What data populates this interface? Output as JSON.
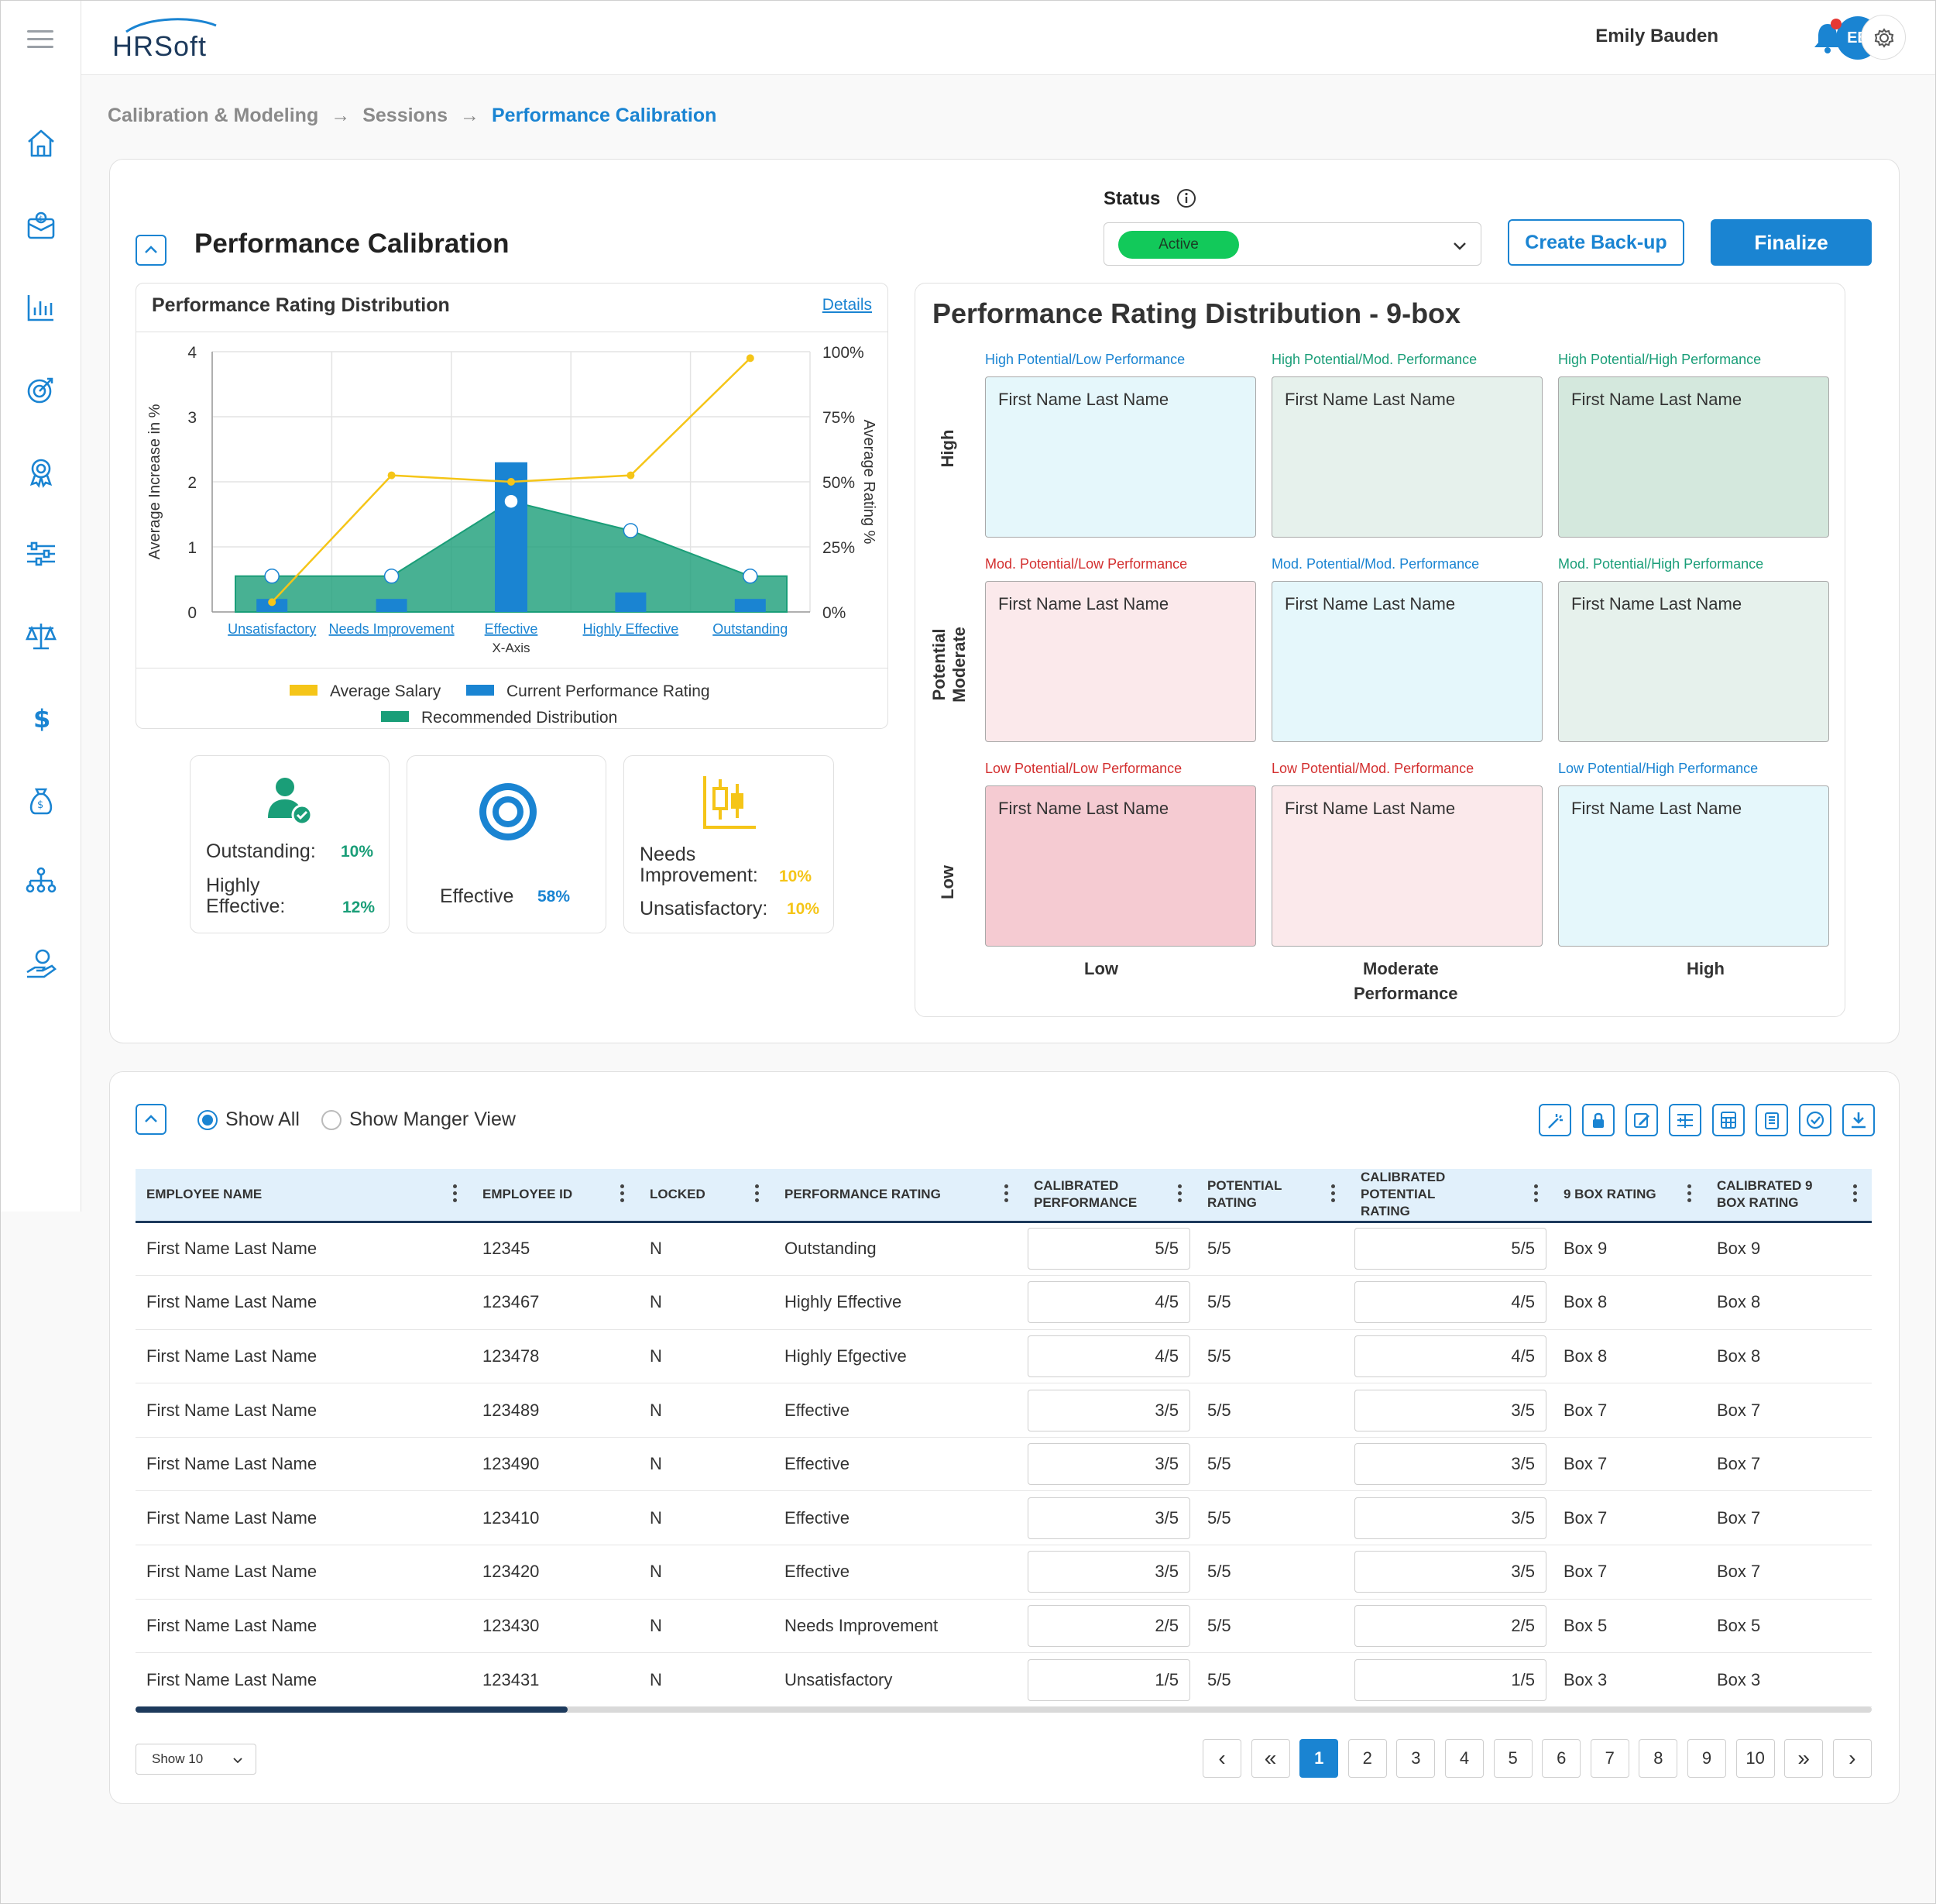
{
  "header": {
    "logo": "HRSoft",
    "user_name": "Emily Bauden",
    "user_initials": "EB"
  },
  "sidebar": {
    "items": [
      {
        "icon": "home-icon"
      },
      {
        "icon": "compensation-box-icon"
      },
      {
        "icon": "bar-chart-icon"
      },
      {
        "icon": "target-icon"
      },
      {
        "icon": "award-icon"
      },
      {
        "icon": "sliders-icon"
      },
      {
        "icon": "scales-icon"
      },
      {
        "icon": "dollar-icon"
      },
      {
        "icon": "money-bag-icon"
      },
      {
        "icon": "org-chart-icon"
      },
      {
        "icon": "hand-coin-icon"
      }
    ]
  },
  "breadcrumb": {
    "items": [
      "Calibration & Modeling",
      "Sessions"
    ],
    "current": "Performance Calibration"
  },
  "calibration": {
    "title": "Performance Calibration",
    "status_label": "Status",
    "status_value": "Active",
    "backup_label": "Create Back-up",
    "finalize_label": "Finalize"
  },
  "chart_card": {
    "title": "Performance Rating Distribution",
    "details_label": "Details"
  },
  "chart_data": {
    "type": "bar",
    "categories": [
      "Unsatisfactory",
      "Needs Improvement",
      "Effective",
      "Highly Effective",
      "Outstanding"
    ],
    "xlabel": "X-Axis",
    "ylabel": "Average Increase in %",
    "y2label": "Average Rating %",
    "ylim": [
      0,
      4
    ],
    "y2lim": [
      0,
      100
    ],
    "yticks": [
      "0",
      "1",
      "2",
      "3",
      "4"
    ],
    "y2ticks": [
      "0%",
      "25%",
      "50%",
      "75%",
      "100%"
    ],
    "series": [
      {
        "name": "Average Salary",
        "kind": "line",
        "axis": "left",
        "color": "#f5c518",
        "values": [
          0.15,
          2.1,
          2.0,
          2.1,
          3.9
        ]
      },
      {
        "name": "Current Performance Rating",
        "kind": "bar",
        "axis": "left",
        "color": "#1a84d2",
        "values": [
          0.2,
          0.2,
          2.3,
          0.3,
          0.2
        ]
      },
      {
        "name": "Recommended Distribution",
        "kind": "area",
        "axis": "left",
        "color": "#1a9e78",
        "values": [
          0.55,
          0.55,
          1.7,
          1.25,
          0.55
        ]
      }
    ],
    "legend": [
      {
        "label": "Average Salary",
        "color": "#f5c518"
      },
      {
        "label": "Current Performance Rating",
        "color": "#1a84d2"
      },
      {
        "label": "Recommended Distribution",
        "color": "#1a9e78"
      }
    ]
  },
  "stats": {
    "outstanding_label": "Outstanding:",
    "outstanding_pct": "10%",
    "highly_effective_label": "Highly Effective:",
    "highly_effective_pct": "12%",
    "effective_label": "Effective",
    "effective_pct": "58%",
    "needs_improvement_label": "Needs Improvement:",
    "needs_improvement_pct": "10%",
    "unsatisfactory_label": "Unsatisfactory:",
    "unsatisfactory_pct": "10%",
    "colors": {
      "green": "#1a9e78",
      "blue": "#1a84d2",
      "yellow": "#f5c518"
    }
  },
  "ninebox": {
    "title": "Performance Rating Distribution - 9-box",
    "y_axis_label": "Potential",
    "x_axis_label": "Performance",
    "y_levels": [
      "High",
      "Moderate",
      "Low"
    ],
    "x_levels": [
      "Low",
      "Moderate",
      "High"
    ],
    "cells": [
      {
        "label": "High Potential/Low Performance",
        "name": "First Name Last Name",
        "bg": "#e5f7fb",
        "label_color": "#1a84d2"
      },
      {
        "label": "High Potential/Mod. Performance",
        "name": "First Name Last Name",
        "bg": "#e6f1ec",
        "label_color": "#1a9e78"
      },
      {
        "label": "High Potential/High Performance",
        "name": "First Name Last Name",
        "bg": "#d4e8dd",
        "label_color": "#1a9e78"
      },
      {
        "label": "Mod. Potential/Low Performance",
        "name": "First Name Last Name",
        "bg": "#fbe9eb",
        "label_color": "#d32f2f"
      },
      {
        "label": "Mod. Potential/Mod. Performance",
        "name": "First Name Last Name",
        "bg": "#e5f7fb",
        "label_color": "#1a84d2"
      },
      {
        "label": "Mod. Potential/High Performance",
        "name": "First Name Last Name",
        "bg": "#e6f1ec",
        "label_color": "#1a9e78"
      },
      {
        "label": "Low Potential/Low Performance",
        "name": "First Name Last Name",
        "bg": "#f5cbd2",
        "label_color": "#d32f2f"
      },
      {
        "label": "Low Potential/Mod. Performance",
        "name": "First Name Last Name",
        "bg": "#fbe9eb",
        "label_color": "#d32f2f"
      },
      {
        "label": "Low Potential/High Performance",
        "name": "First Name Last Name",
        "bg": "#e5f7fb",
        "label_color": "#1a84d2"
      }
    ]
  },
  "table_section": {
    "show_all_label": "Show All",
    "manager_view_label": "Show Manger View",
    "toolbar_icons": [
      "magic-wand-icon",
      "lock-icon",
      "edit-icon",
      "add-column-icon",
      "calculator-icon",
      "clipboard-icon",
      "check-circle-icon",
      "download-icon"
    ],
    "columns": [
      "Employee Name",
      "Employee ID",
      "Locked",
      "Performance Rating",
      "Calibrated Performance",
      "Potential Rating",
      "Calibrated Potential Rating",
      "9 Box Rating",
      "Calibrated 9 Box Rating"
    ],
    "rows": [
      [
        "First Name Last Name",
        "12345",
        "N",
        "Outstanding",
        "5/5",
        "5/5",
        "5/5",
        "Box 9",
        "Box 9"
      ],
      [
        "First Name Last Name",
        "123467",
        "N",
        "Highly Effective",
        "4/5",
        "5/5",
        "4/5",
        "Box 8",
        "Box 8"
      ],
      [
        "First Name Last Name",
        "123478",
        "N",
        "Highly Efgective",
        "4/5",
        "5/5",
        "4/5",
        "Box 8",
        "Box 8"
      ],
      [
        "First Name Last Name",
        "123489",
        "N",
        "Effective",
        "3/5",
        "5/5",
        "3/5",
        "Box 7",
        "Box 7"
      ],
      [
        "First Name Last Name",
        "123490",
        "N",
        "Effective",
        "3/5",
        "5/5",
        "3/5",
        "Box 7",
        "Box 7"
      ],
      [
        "First Name Last Name",
        "123410",
        "N",
        "Effective",
        "3/5",
        "5/5",
        "3/5",
        "Box 7",
        "Box 7"
      ],
      [
        "First Name Last Name",
        "123420",
        "N",
        "Effective",
        "3/5",
        "5/5",
        "3/5",
        "Box 7",
        "Box 7"
      ],
      [
        "First Name Last Name",
        "123430",
        "N",
        "Needs Improvement",
        "2/5",
        "5/5",
        "2/5",
        "Box 5",
        "Box 5"
      ],
      [
        "First Name Last Name",
        "123431",
        "N",
        "Unsatisfactory",
        "1/5",
        "5/5",
        "1/5",
        "Box 3",
        "Box 3"
      ]
    ],
    "page_size_label": "Show 10",
    "pages": [
      "1",
      "2",
      "3",
      "4",
      "5",
      "6",
      "7",
      "8",
      "9",
      "10"
    ],
    "current_page": "1"
  },
  "colors": {
    "accent": "#1a84d2",
    "navy": "#1d3a5c",
    "status_active": "#12c95a",
    "notification_dot": "#e53935"
  }
}
